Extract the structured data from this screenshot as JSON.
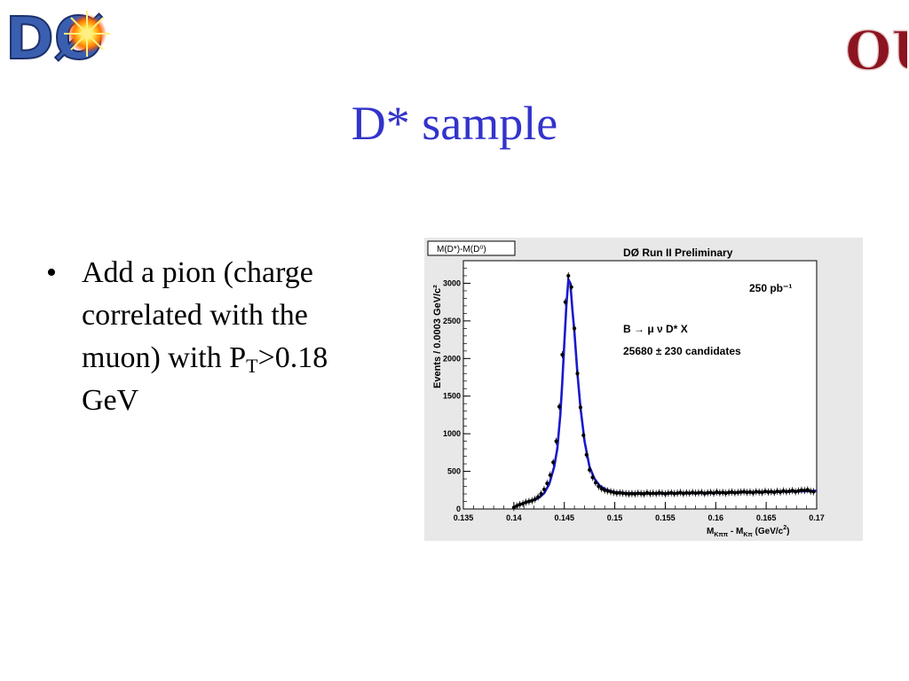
{
  "slide": {
    "title": "D* sample",
    "bullet": {
      "mark": "•",
      "text_main": "Add a pion (charge correlated with the muon) with P",
      "subscript": "T",
      "text_tail": ">0.18 GeV"
    }
  },
  "logos": {
    "left": {
      "icon": "d0-experiment-logo-icon",
      "text": "DØ"
    },
    "right": {
      "icon": "ou-university-logo-icon",
      "text": "OU"
    }
  },
  "colors": {
    "title": "#3333cc",
    "fit": "#1a1acc",
    "points": "#000000",
    "panel": "#e8e8e8"
  },
  "chart_data": {
    "type": "scatter",
    "title": "DØ Run II Preliminary",
    "stat_box": "M(D*)-M(D⁰)",
    "luminosity": "250 pb⁻¹",
    "decay": "B → μ ν D* X",
    "candidates": "25680 ± 230 candidates",
    "xlabel": "M_{Kππ} - M_{Kπ} (GeV/c²)",
    "xlabel_parts": {
      "m1": "M",
      "s1": "Kππ",
      "mid": " - M",
      "s2": "Kπ",
      "unit": " (GeV/c",
      "sup": "2",
      "end": ")"
    },
    "ylabel": "Events / 0.0003 GeV/c²",
    "xlim": [
      0.135,
      0.17
    ],
    "ylim": [
      0,
      3300
    ],
    "x_ticks": [
      "0.135",
      "0.14",
      "0.145",
      "0.15",
      "0.155",
      "0.16",
      "0.165",
      "0.17"
    ],
    "y_ticks": [
      "0",
      "500",
      "1000",
      "1500",
      "2000",
      "2500",
      "3000"
    ],
    "series": [
      {
        "x": [
          0.14,
          0.1403,
          0.1406,
          0.1409,
          0.1412,
          0.1415,
          0.1418,
          0.1421,
          0.1424,
          0.1427,
          0.143,
          0.1433,
          0.1436,
          0.1439,
          0.1442,
          0.1445,
          0.1448,
          0.1451,
          0.1454,
          0.1457,
          0.146,
          0.1463,
          0.1466,
          0.1469,
          0.1472,
          0.1475,
          0.1478,
          0.1481,
          0.1484,
          0.1487,
          0.149,
          0.1493,
          0.1496,
          0.1499,
          0.1502,
          0.1505,
          0.1508,
          0.1511,
          0.1514,
          0.1517,
          0.152,
          0.1523,
          0.1526,
          0.1529,
          0.1532,
          0.1535,
          0.1538,
          0.1541,
          0.1544,
          0.1547,
          0.155,
          0.1553,
          0.1556,
          0.1559,
          0.1562,
          0.1565,
          0.1568,
          0.1571,
          0.1574,
          0.1577,
          0.158,
          0.1583,
          0.1586,
          0.1589,
          0.1592,
          0.1595,
          0.1598,
          0.1601,
          0.1604,
          0.1607,
          0.161,
          0.1613,
          0.1616,
          0.1619,
          0.1622,
          0.1625,
          0.1628,
          0.1631,
          0.1634,
          0.1637,
          0.164,
          0.1643,
          0.1646,
          0.1649,
          0.1652,
          0.1655,
          0.1658,
          0.1661,
          0.1664,
          0.1667,
          0.167,
          0.1673,
          0.1676,
          0.1679,
          0.1682,
          0.1685,
          0.1688,
          0.1691,
          0.1694,
          0.1697
        ],
        "y": [
          20,
          40,
          60,
          70,
          90,
          100,
          110,
          130,
          160,
          200,
          260,
          340,
          450,
          620,
          900,
          1360,
          2050,
          2750,
          3100,
          2950,
          2400,
          1800,
          1350,
          980,
          720,
          520,
          420,
          350,
          300,
          270,
          250,
          240,
          230,
          220,
          210,
          215,
          210,
          205,
          200,
          205,
          200,
          210,
          205,
          200,
          215,
          205,
          210,
          205,
          215,
          210,
          200,
          210,
          215,
          205,
          210,
          220,
          205,
          215,
          210,
          220,
          210,
          215,
          220,
          205,
          215,
          220,
          210,
          225,
          215,
          220,
          210,
          220,
          225,
          215,
          220,
          225,
          230,
          220,
          225,
          215,
          230,
          225,
          220,
          235,
          225,
          230,
          220,
          235,
          225,
          240,
          230,
          235,
          245,
          230,
          240,
          250,
          245,
          255,
          235,
          230
        ]
      }
    ],
    "fit": {
      "x": [
        0.14,
        0.1405,
        0.141,
        0.1415,
        0.142,
        0.1425,
        0.143,
        0.1435,
        0.144,
        0.1443,
        0.1446,
        0.1448,
        0.145,
        0.1452,
        0.1454,
        0.1456,
        0.1458,
        0.146,
        0.1463,
        0.1466,
        0.147,
        0.1475,
        0.148,
        0.1485,
        0.149,
        0.1495,
        0.15,
        0.151,
        0.152,
        0.154,
        0.156,
        0.158,
        0.16,
        0.162,
        0.164,
        0.166,
        0.168,
        0.17
      ],
      "y": [
        25,
        55,
        80,
        100,
        120,
        150,
        210,
        330,
        560,
        800,
        1250,
        1680,
        2200,
        2700,
        3050,
        3000,
        2650,
        2350,
        1800,
        1350,
        900,
        560,
        400,
        310,
        265,
        240,
        225,
        212,
        208,
        208,
        210,
        212,
        215,
        220,
        225,
        230,
        235,
        240
      ]
    }
  }
}
